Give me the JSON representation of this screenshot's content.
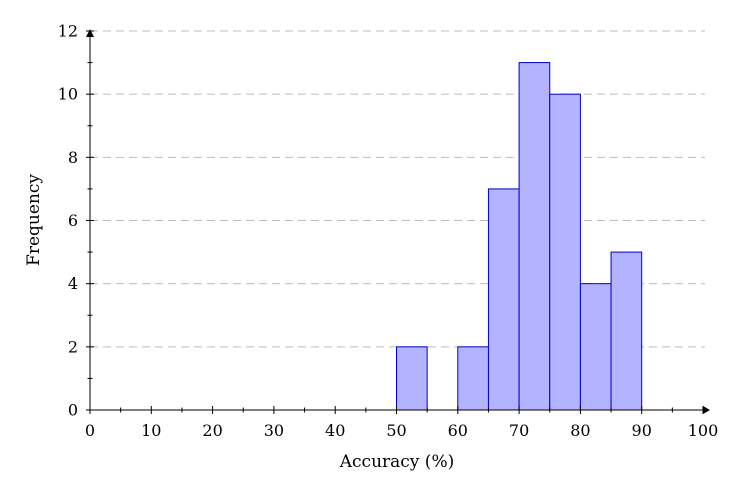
{
  "chart_data": {
    "type": "bar",
    "subtype": "histogram",
    "xlabel": "Accuracy (%)",
    "ylabel": "Frequency",
    "xlim": [
      0,
      100
    ],
    "ylim": [
      0,
      12
    ],
    "xticks": [
      0,
      10,
      20,
      30,
      40,
      50,
      60,
      70,
      80,
      90,
      100
    ],
    "yticks": [
      0,
      2,
      4,
      6,
      8,
      10,
      12
    ],
    "grid": "horizontal-dashed",
    "bin_width": 5,
    "bins": [
      {
        "start": 50,
        "end": 55,
        "count": 2
      },
      {
        "start": 60,
        "end": 65,
        "count": 2
      },
      {
        "start": 65,
        "end": 70,
        "count": 7
      },
      {
        "start": 70,
        "end": 75,
        "count": 11
      },
      {
        "start": 75,
        "end": 80,
        "count": 10
      },
      {
        "start": 80,
        "end": 85,
        "count": 4
      },
      {
        "start": 85,
        "end": 90,
        "count": 5
      }
    ],
    "colors": {
      "bar_fill": "#b3b3ff",
      "bar_stroke": "#0000cc",
      "grid": "#bdbdbd"
    }
  }
}
